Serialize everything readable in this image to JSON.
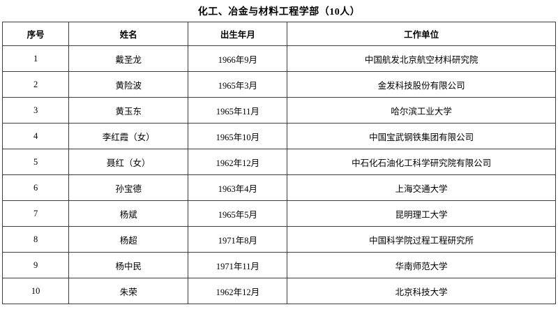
{
  "title": "化工、冶金与材料工程学部（10人）",
  "table": {
    "headers": [
      "序号",
      "姓名",
      "出生年月",
      "工作单位"
    ],
    "rows": [
      [
        "1",
        "戴圣龙",
        "1966年9月",
        "中国航发北京航空材料研究院"
      ],
      [
        "2",
        "黄险波",
        "1965年3月",
        "金发科技股份有限公司"
      ],
      [
        "3",
        "黄玉东",
        "1965年11月",
        "哈尔滨工业大学"
      ],
      [
        "4",
        "李红霞（女）",
        "1965年10月",
        "中国宝武钢铁集团有限公司"
      ],
      [
        "5",
        "聂红（女）",
        "1962年12月",
        "中石化石油化工科学研究院有限公司"
      ],
      [
        "6",
        "孙宝德",
        "1963年4月",
        "上海交通大学"
      ],
      [
        "7",
        "杨斌",
        "1965年5月",
        "昆明理工大学"
      ],
      [
        "8",
        "杨超",
        "1971年8月",
        "中国科学院过程工程研究所"
      ],
      [
        "9",
        "杨中民",
        "1971年11月",
        "华南师范大学"
      ],
      [
        "10",
        "朱荣",
        "1962年12月",
        "北京科技大学"
      ]
    ]
  }
}
